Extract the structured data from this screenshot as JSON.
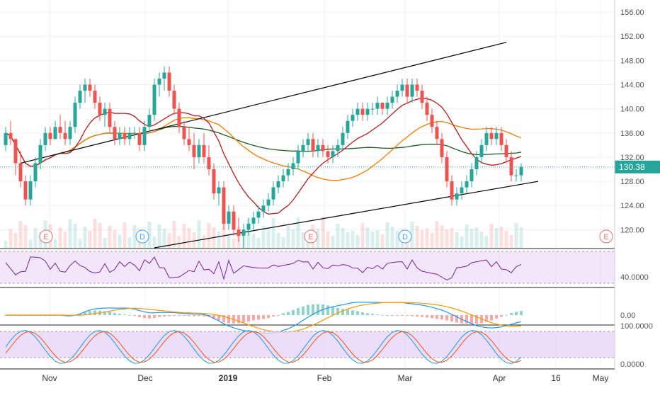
{
  "chart_data": {
    "type": "candlestick",
    "panes": {
      "price": {
        "ylim": [
          117,
          158
        ],
        "ticks": [
          "156.00",
          "152.00",
          "148.00",
          "144.00",
          "140.00",
          "136.00",
          "132.00",
          "128.00",
          "124.00",
          "120.00"
        ],
        "last_price": "130.38",
        "last_value": 130.38,
        "candles": [
          [
            134,
            137,
            133,
            136
          ],
          [
            136,
            138,
            134,
            135
          ],
          [
            135,
            135,
            129,
            131
          ],
          [
            131,
            133,
            127,
            128
          ],
          [
            128,
            129,
            124,
            125
          ],
          [
            125,
            129,
            124,
            128
          ],
          [
            128,
            132,
            127,
            131
          ],
          [
            131,
            135,
            130,
            134
          ],
          [
            134,
            137,
            133,
            136
          ],
          [
            136,
            137,
            134,
            135
          ],
          [
            135,
            138,
            135,
            137
          ],
          [
            137,
            139,
            135,
            136
          ],
          [
            136,
            138,
            134,
            135
          ],
          [
            135,
            138,
            134,
            137
          ],
          [
            137,
            142,
            136,
            141
          ],
          [
            141,
            144,
            140,
            143
          ],
          [
            143,
            145,
            141,
            144
          ],
          [
            144,
            145,
            142,
            143
          ],
          [
            143,
            144,
            140,
            141
          ],
          [
            141,
            142,
            138,
            139
          ],
          [
            139,
            141,
            137,
            140
          ],
          [
            140,
            141,
            136,
            137
          ],
          [
            137,
            138,
            134,
            135
          ],
          [
            135,
            137,
            134,
            136
          ],
          [
            136,
            137,
            134,
            135
          ],
          [
            135,
            137,
            134,
            136
          ],
          [
            136,
            137,
            135,
            136
          ],
          [
            136,
            137,
            133,
            134
          ],
          [
            134,
            138,
            133,
            137
          ],
          [
            137,
            140,
            136,
            139
          ],
          [
            139,
            145,
            138,
            144
          ],
          [
            144,
            146,
            142,
            145
          ],
          [
            145,
            147,
            143,
            146
          ],
          [
            146,
            147,
            142,
            143
          ],
          [
            143,
            144,
            139,
            140
          ],
          [
            140,
            141,
            136,
            137
          ],
          [
            137,
            138,
            134,
            135
          ],
          [
            135,
            137,
            133,
            134
          ],
          [
            134,
            136,
            130,
            132
          ],
          [
            132,
            135,
            131,
            134
          ],
          [
            134,
            136,
            131,
            132
          ],
          [
            132,
            134,
            129,
            130
          ],
          [
            130,
            131,
            125,
            126
          ],
          [
            126,
            128,
            124,
            127
          ],
          [
            127,
            128,
            120,
            121
          ],
          [
            121,
            124,
            120,
            123
          ],
          [
            123,
            124,
            119,
            120
          ],
          [
            120,
            122,
            118,
            119
          ],
          [
            119,
            121,
            117,
            120
          ],
          [
            120,
            122,
            119,
            121
          ],
          [
            121,
            123,
            120,
            122
          ],
          [
            122,
            124,
            121,
            123
          ],
          [
            123,
            125,
            122,
            124
          ],
          [
            124,
            126,
            123,
            125
          ],
          [
            125,
            128,
            124,
            127
          ],
          [
            127,
            129,
            126,
            128
          ],
          [
            128,
            130,
            127,
            129
          ],
          [
            129,
            131,
            128,
            130
          ],
          [
            130,
            132,
            129,
            131
          ],
          [
            131,
            134,
            130,
            133
          ],
          [
            133,
            135,
            132,
            134
          ],
          [
            134,
            136,
            133,
            135
          ],
          [
            135,
            136,
            132,
            133
          ],
          [
            133,
            135,
            132,
            134
          ],
          [
            134,
            135,
            132,
            133
          ],
          [
            133,
            134,
            131,
            132
          ],
          [
            132,
            134,
            131,
            133
          ],
          [
            133,
            135,
            132,
            134
          ],
          [
            134,
            137,
            133,
            136
          ],
          [
            136,
            139,
            135,
            138
          ],
          [
            138,
            140,
            137,
            139
          ],
          [
            139,
            141,
            138,
            140
          ],
          [
            140,
            141,
            138,
            139
          ],
          [
            139,
            141,
            138,
            140
          ],
          [
            140,
            141,
            139,
            140
          ],
          [
            140,
            142,
            139,
            141
          ],
          [
            141,
            141,
            139,
            140
          ],
          [
            140,
            142,
            139,
            141
          ],
          [
            141,
            143,
            140,
            142
          ],
          [
            142,
            144,
            141,
            143
          ],
          [
            143,
            145,
            142,
            144
          ],
          [
            144,
            145,
            141,
            142
          ],
          [
            142,
            145,
            141,
            144
          ],
          [
            144,
            145,
            142,
            143
          ],
          [
            143,
            144,
            140,
            141
          ],
          [
            141,
            142,
            138,
            139
          ],
          [
            139,
            140,
            136,
            137
          ],
          [
            137,
            138,
            134,
            135
          ],
          [
            135,
            136,
            131,
            132
          ],
          [
            132,
            133,
            127,
            128
          ],
          [
            128,
            129,
            124,
            125
          ],
          [
            125,
            127,
            124,
            126
          ],
          [
            126,
            128,
            125,
            127
          ],
          [
            127,
            129,
            126,
            128
          ],
          [
            128,
            131,
            127,
            130
          ],
          [
            130,
            133,
            129,
            132
          ],
          [
            132,
            135,
            131,
            134
          ],
          [
            134,
            137,
            133,
            136
          ],
          [
            136,
            137,
            134,
            135
          ],
          [
            135,
            137,
            134,
            136
          ],
          [
            136,
            137,
            133,
            134
          ],
          [
            134,
            135,
            131,
            132
          ],
          [
            132,
            133,
            128,
            129
          ],
          [
            129,
            130,
            128,
            129
          ],
          [
            129,
            131,
            128,
            130.38
          ]
        ],
        "event_markers": [
          {
            "label": "E",
            "color": "#e57373"
          },
          {
            "label": "D",
            "color": "#42a5f5"
          },
          {
            "label": "E",
            "color": "#e57373"
          },
          {
            "label": "D",
            "color": "#42a5f5"
          },
          {
            "label": "E",
            "color": "#e57373"
          }
        ]
      },
      "rsi": {
        "level_label": "40.0000"
      },
      "macd": {
        "level_label": "0.00"
      },
      "stoch": {
        "top_label": "100.0000",
        "bottom_label": "0.0000"
      }
    },
    "x_labels": [
      "Nov",
      "Dec",
      "2019",
      "Feb",
      "Mar",
      "Apr",
      "16",
      "May"
    ],
    "colors": {
      "up": "#26a69a",
      "down": "#ef5350",
      "grid": "#eef0f3",
      "ma_red": "#b71c1c",
      "ma_orange": "#f57c00",
      "ma_green": "#1b5e20",
      "trend": "#111111",
      "last": "#26a69a",
      "rsi": "#7b1fa2",
      "band": "#e7d6f7",
      "macd": "#2196f3",
      "signal": "#ff9800",
      "stoch_k": "#2196f3",
      "stoch_d": "#f4511e"
    }
  }
}
